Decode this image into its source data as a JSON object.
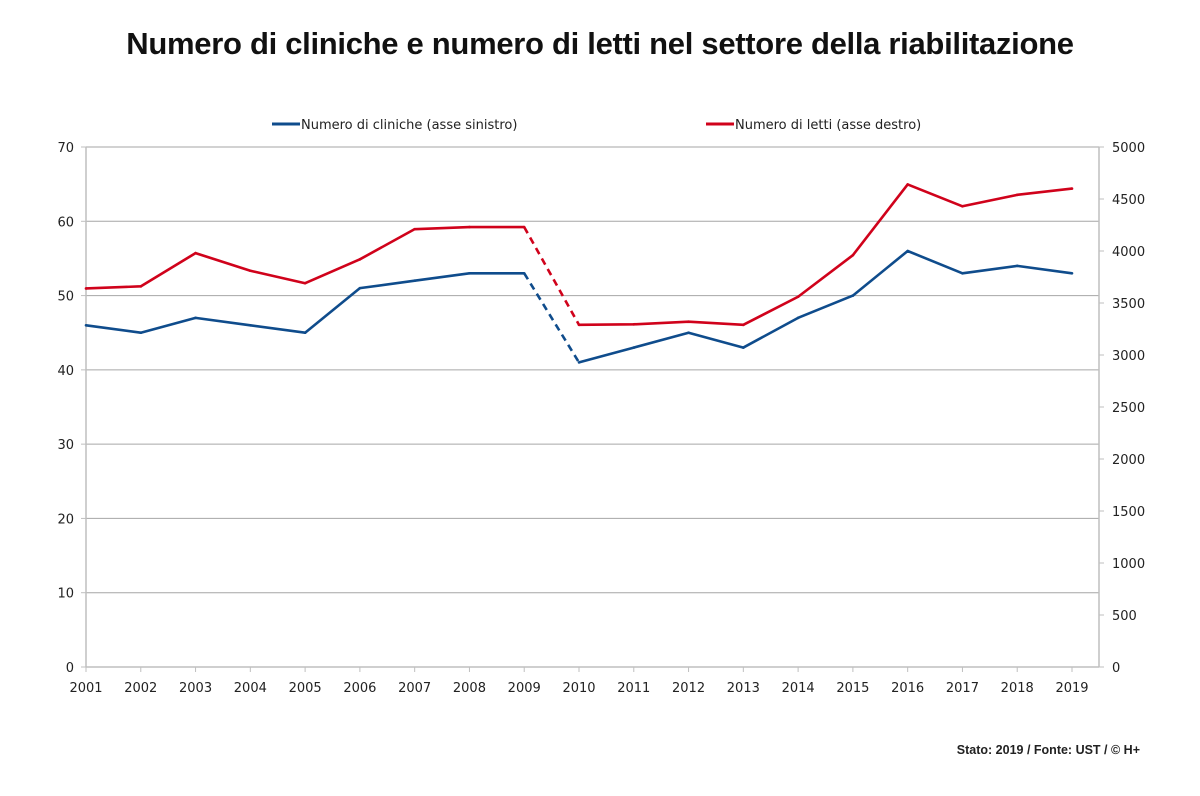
{
  "chart_data": {
    "type": "line",
    "title": "Numero di cliniche e numero di letti nel settore della riabilitazione",
    "footer": "Stato: 2019 / Fonte: UST / © H+",
    "x": [
      "2001",
      "2002",
      "2003",
      "2004",
      "2005",
      "2006",
      "2007",
      "2008",
      "2009",
      "2010",
      "2011",
      "2012",
      "2013",
      "2014",
      "2015",
      "2016",
      "2017",
      "2018",
      "2019"
    ],
    "left_axis": {
      "ylim": [
        0,
        70
      ],
      "ticks": [
        "0",
        "10",
        "20",
        "30",
        "40",
        "50",
        "60",
        "70"
      ],
      "tick_values": [
        0,
        10,
        20,
        30,
        40,
        50,
        60,
        70
      ]
    },
    "right_axis": {
      "ylim": [
        0,
        5000
      ],
      "ticks": [
        "0",
        "500",
        "1000",
        "1500",
        "2000",
        "2500",
        "3000",
        "3500",
        "4000",
        "4500",
        "5000"
      ],
      "tick_values": [
        0,
        500,
        1000,
        1500,
        2000,
        2500,
        3000,
        3500,
        4000,
        4500,
        5000
      ]
    },
    "grid": true,
    "legend_position": "top",
    "dashed_segment": [
      "2009",
      "2010"
    ],
    "series": [
      {
        "name": "Numero di cliniche (asse sinistro)",
        "axis": "left",
        "color": "#0f4c8c",
        "values": [
          46,
          45,
          47,
          46,
          45,
          51,
          52,
          53,
          53,
          41,
          43,
          45,
          43,
          47,
          50,
          56,
          53,
          54,
          53
        ]
      },
      {
        "name": "Numero di letti (asse destro)",
        "axis": "right",
        "color": "#d0021b",
        "values": [
          3640,
          3660,
          3980,
          3810,
          3690,
          3920,
          4210,
          4230,
          4230,
          3290,
          3295,
          3320,
          3290,
          3560,
          3960,
          4640,
          4430,
          4540,
          4600
        ]
      }
    ]
  }
}
